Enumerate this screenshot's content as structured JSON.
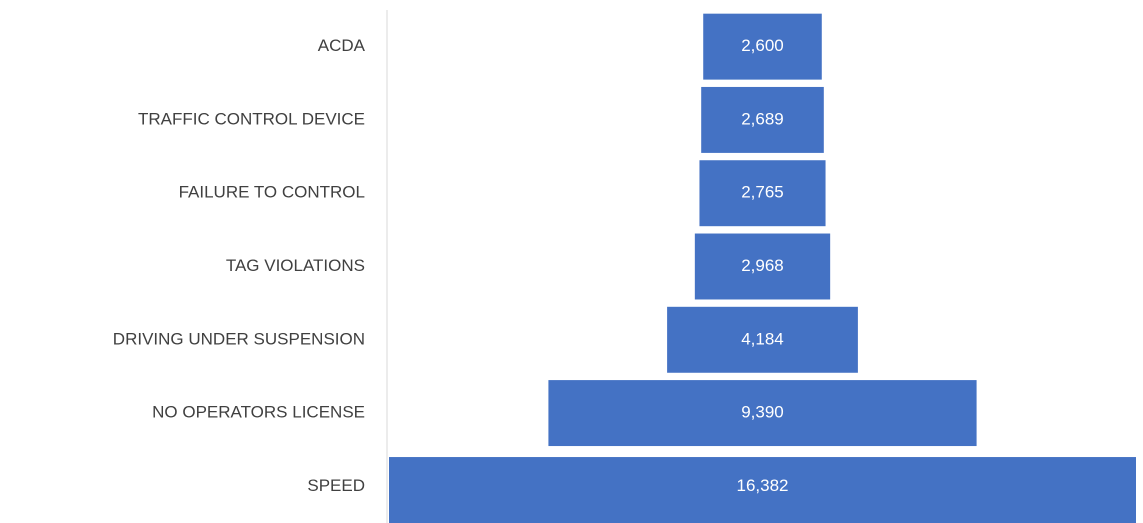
{
  "chart_data": {
    "type": "funnel",
    "categories": [
      "ACDA",
      "TRAFFIC CONTROL DEVICE",
      "FAILURE TO CONTROL",
      "TAG VIOLATIONS",
      "DRIVING UNDER SUSPENSION",
      "NO OPERATORS LICENSE",
      "SPEED"
    ],
    "values": [
      2600,
      2689,
      2765,
      2968,
      4184,
      9390,
      16382
    ],
    "value_labels": [
      "2,600",
      "2,689",
      "2,765",
      "2,968",
      "4,184",
      "9,390",
      "16,382"
    ],
    "color": "#4472c4"
  }
}
